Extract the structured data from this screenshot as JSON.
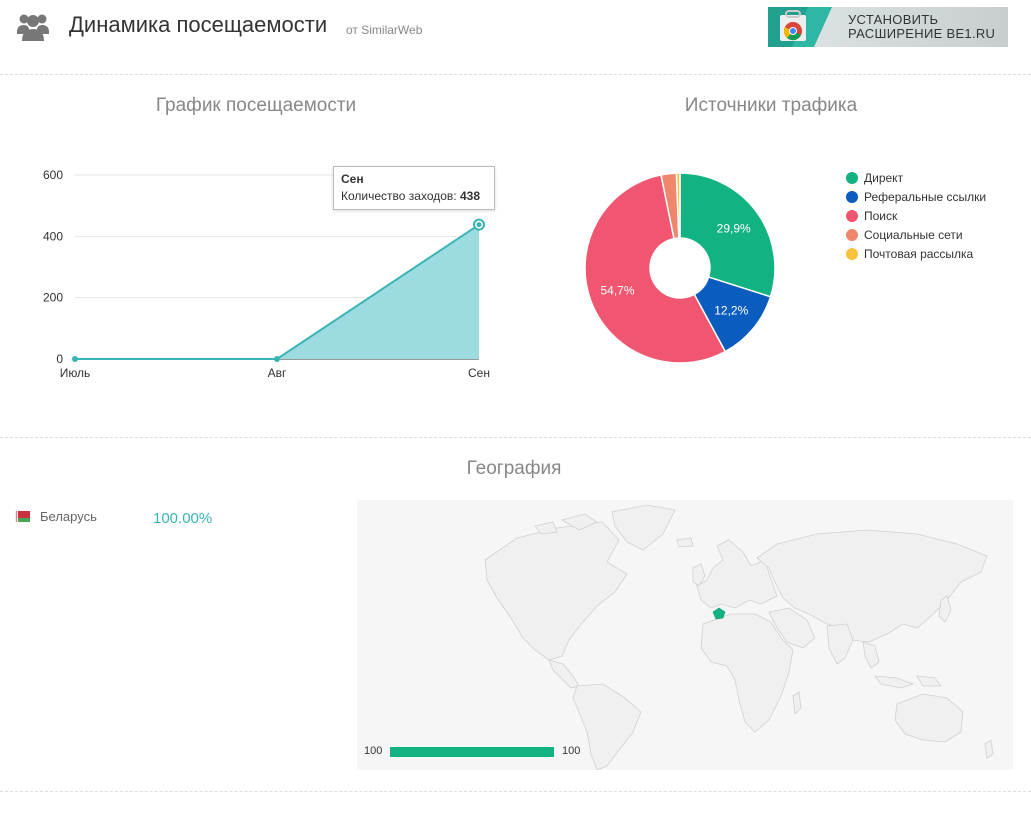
{
  "header": {
    "icon": "users-icon",
    "title": "Динамика посещаемости",
    "subtitle": "от SimilarWeb",
    "install_button": {
      "label": "УСТАНОВИТЬ\nРАСШИРЕНИЕ BE1.RU",
      "icon": "chrome-store-icon"
    }
  },
  "visits": {
    "title": "График посещаемости",
    "tooltip": {
      "title": "Сен",
      "label": "Количество заходов:",
      "value": "438"
    },
    "color": "#3ab5b5",
    "fill": "#9cdbe0"
  },
  "sources": {
    "title": "Источники трафика",
    "legend": [
      {
        "label": "Директ",
        "color": "#13b282"
      },
      {
        "label": "Реферальные ссылки",
        "color": "#0a5cbf"
      },
      {
        "label": "Поиск",
        "color": "#f0566f"
      },
      {
        "label": "Социальные сети",
        "color": "#f0866b"
      },
      {
        "label": "Почтовая рассылка",
        "color": "#f8c33b"
      }
    ]
  },
  "geography": {
    "title": "География",
    "countries": [
      {
        "name": "Беларусь",
        "percent": "100.00%",
        "flag": "belarus-flag-icon"
      }
    ],
    "map": {
      "highlight_color": "#13b282",
      "scale_min": "100",
      "scale_max": "100"
    }
  },
  "chart_data": [
    {
      "type": "area",
      "title": "График посещаемости",
      "categories": [
        "Июль",
        "Авг",
        "Сен"
      ],
      "series": [
        {
          "name": "Количество заходов",
          "values": [
            0,
            0,
            438
          ]
        }
      ],
      "ylim": [
        0,
        600
      ],
      "yticks": [
        0,
        200,
        400,
        600
      ],
      "grid": true
    },
    {
      "type": "pie",
      "title": "Источники трафика",
      "donut": true,
      "labels": [
        "Директ",
        "Реферальные ссылки",
        "Поиск",
        "Социальные сети",
        "Почтовая рассылка"
      ],
      "values": [
        29.9,
        12.2,
        54.7,
        2.6,
        0.6
      ],
      "data_labels": [
        "29,9%",
        "12,2%",
        "54,7%",
        "",
        ""
      ],
      "colors": [
        "#13b282",
        "#0a5cbf",
        "#f0566f",
        "#f0866b",
        "#f8c33b"
      ],
      "legend": "right"
    }
  ]
}
